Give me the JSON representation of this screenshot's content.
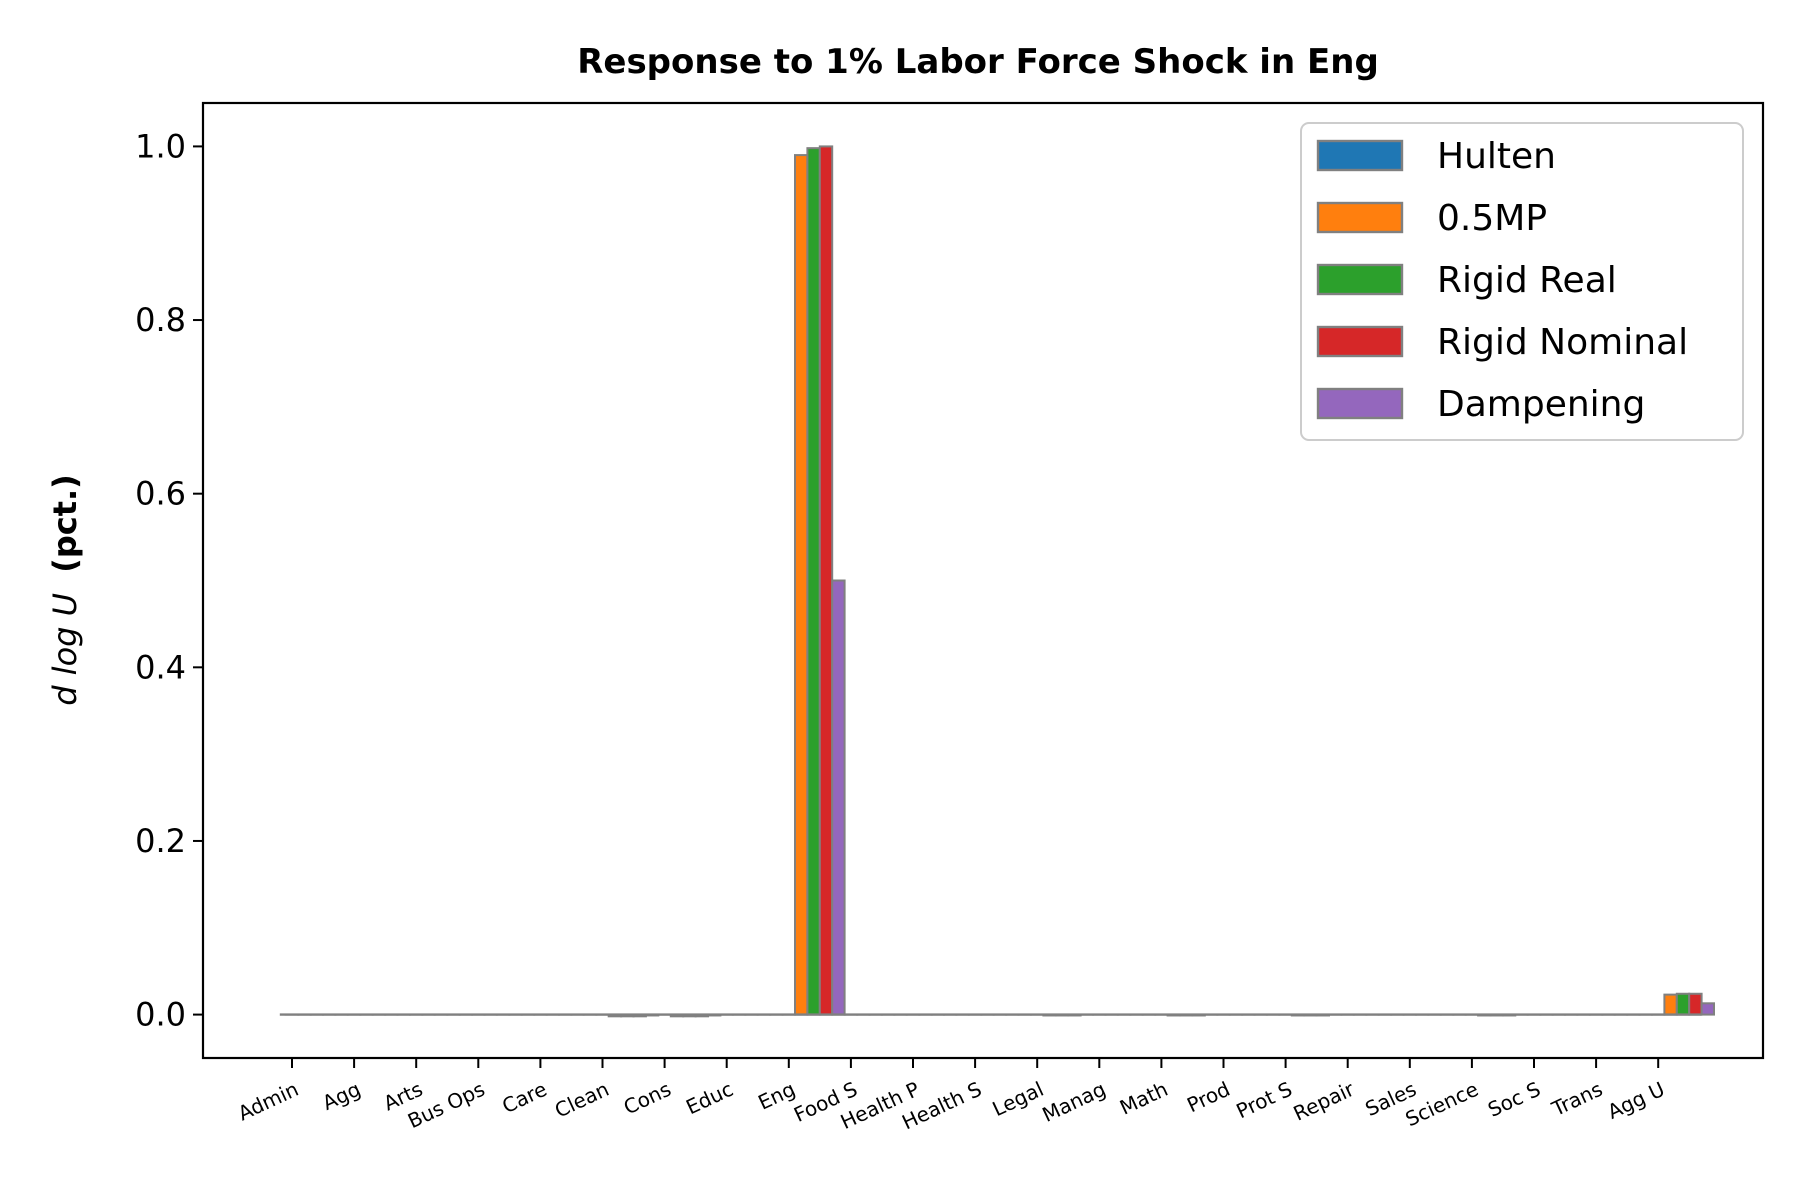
{
  "chart_data": {
    "type": "bar",
    "title": "Response to 1% Labor Force Shock in Eng",
    "ylabel_math": "d log U",
    "ylabel_unit": "(pct.)",
    "xlabel": "",
    "ylim": [
      -0.05,
      1.05
    ],
    "yticks": [
      "0.0",
      "0.2",
      "0.4",
      "0.6",
      "0.8",
      "1.0"
    ],
    "grid": false,
    "legend_position": "top-right",
    "categories": [
      "Admin",
      "Agg",
      "Arts",
      "Bus Ops",
      "Care",
      "Clean",
      "Cons",
      "Educ",
      "Eng",
      "Food S",
      "Health P",
      "Health S",
      "Legal",
      "Manag",
      "Math",
      "Prod",
      "Prot S",
      "Repair",
      "Sales",
      "Science",
      "Soc S",
      "Trans",
      "Agg U"
    ],
    "series": [
      {
        "name": "Hulten",
        "color": "#1f77b4",
        "values": [
          0,
          0,
          0,
          0,
          0,
          0,
          0,
          0,
          0,
          0,
          0,
          0,
          0,
          0,
          0,
          0,
          0,
          0,
          0,
          0,
          0,
          0,
          0
        ]
      },
      {
        "name": "0.5MP",
        "color": "#ff7f0e",
        "values": [
          0,
          0,
          0,
          0,
          0,
          -0.002,
          -0.002,
          0,
          0.99,
          0,
          0,
          0,
          -0.001,
          0,
          -0.001,
          0,
          -0.001,
          0,
          0,
          -0.001,
          0,
          0,
          0.023
        ]
      },
      {
        "name": "Rigid Real",
        "color": "#2ca02c",
        "values": [
          0,
          0,
          0,
          0,
          0,
          -0.002,
          -0.002,
          0,
          0.998,
          0,
          0,
          0,
          -0.001,
          0,
          -0.001,
          0,
          -0.001,
          0,
          0,
          -0.001,
          0,
          0,
          0.024
        ]
      },
      {
        "name": "Rigid Nominal",
        "color": "#d62728",
        "values": [
          0,
          0,
          0,
          0,
          0,
          -0.002,
          -0.002,
          0,
          1.0,
          0,
          0,
          0,
          -0.001,
          0,
          -0.001,
          0,
          -0.001,
          0,
          0,
          -0.001,
          0,
          0,
          0.024
        ]
      },
      {
        "name": "Dampening",
        "color": "#9467bd",
        "values": [
          0,
          0,
          0,
          0,
          0,
          -0.001,
          -0.001,
          0,
          0.5,
          0,
          0,
          0,
          0,
          0,
          0,
          0,
          0,
          0,
          0,
          0,
          0,
          0,
          0.013
        ]
      }
    ]
  }
}
